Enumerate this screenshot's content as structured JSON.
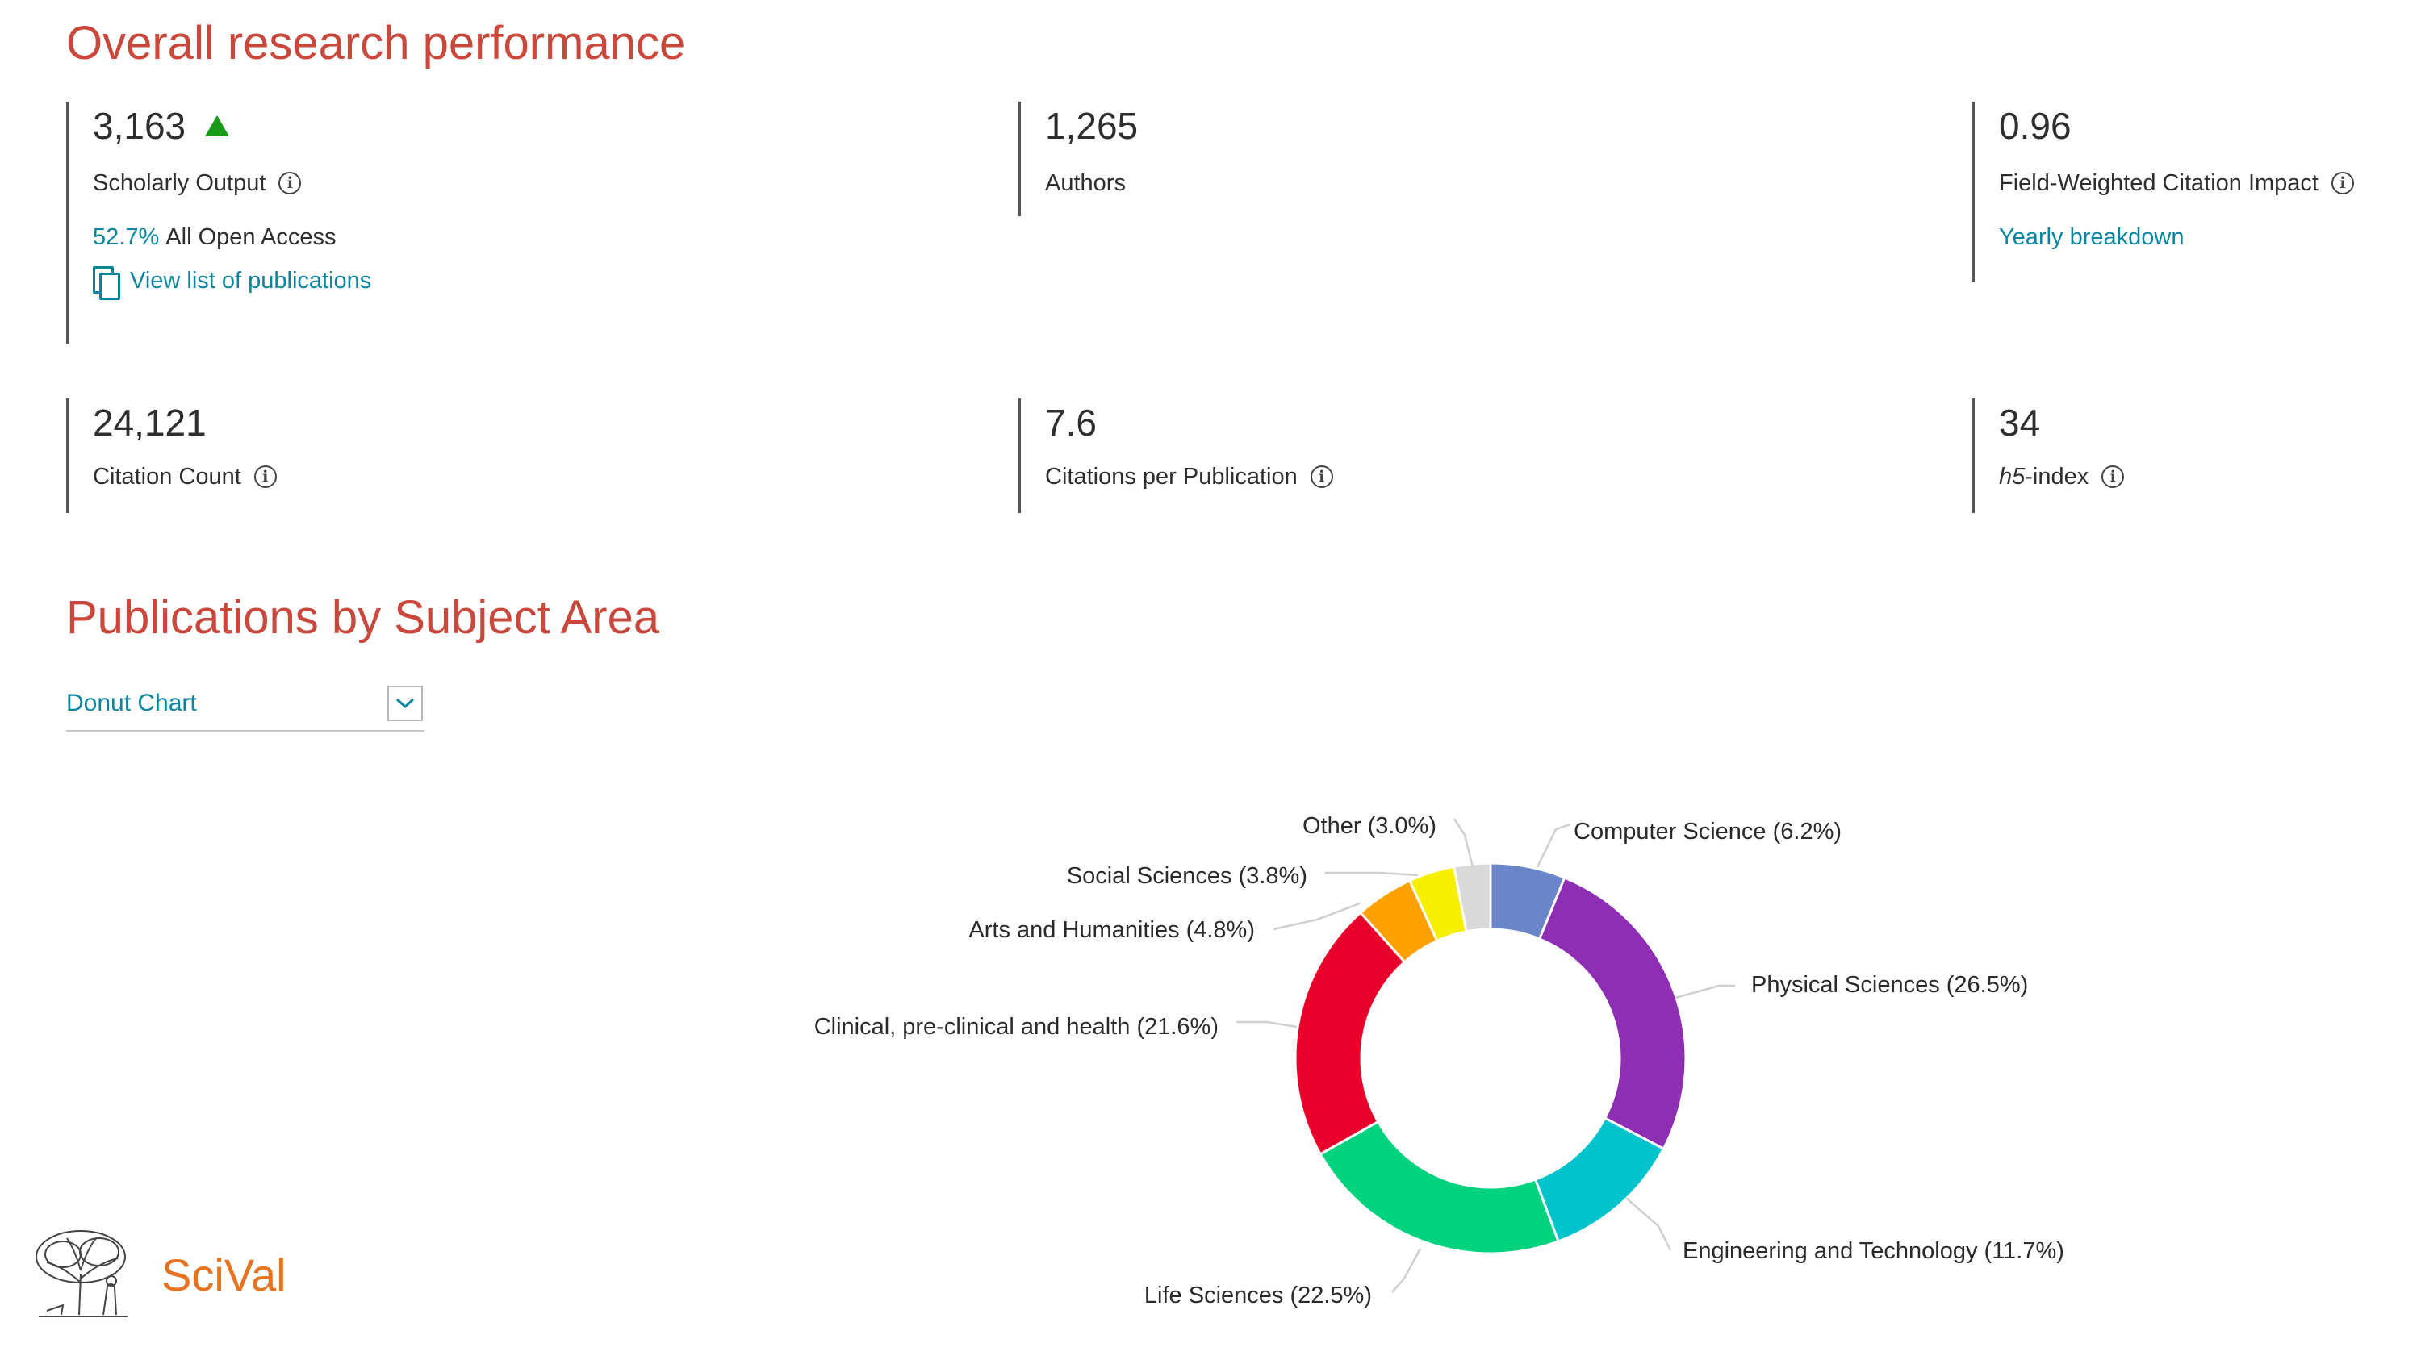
{
  "sections": {
    "performance_title": "Overall research performance",
    "subject_title": "Publications by Subject Area"
  },
  "metrics": {
    "scholarly_output": {
      "value": "3,163",
      "label": "Scholarly Output",
      "trend": "up",
      "open_access_pct": "52.7%",
      "open_access_label": "All Open Access",
      "view_link": "View list of publications"
    },
    "authors": {
      "value": "1,265",
      "label": "Authors"
    },
    "fwci": {
      "value": "0.96",
      "label": "Field-Weighted Citation Impact",
      "link": "Yearly breakdown"
    },
    "citation_count": {
      "value": "24,121",
      "label": "Citation Count"
    },
    "citations_per_pub": {
      "value": "7.6",
      "label": "Citations per Publication"
    },
    "h5_index": {
      "value": "34",
      "label_italic": "h5",
      "label_rest": "-index"
    }
  },
  "chart_selector": {
    "selected": "Donut Chart"
  },
  "chart_data": {
    "type": "pie",
    "variant": "donut",
    "slices": [
      {
        "name": "Computer Science",
        "value": 6.2,
        "label": "Computer Science (6.2%)",
        "color": "#6b86c8"
      },
      {
        "name": "Physical Sciences",
        "value": 26.5,
        "label": "Physical Sciences (26.5%)",
        "color": "#8e2fb3"
      },
      {
        "name": "Engineering and Technology",
        "value": 11.7,
        "label": "Engineering and Technology (11.7%)",
        "color": "#00c3cc"
      },
      {
        "name": "Life Sciences",
        "value": 22.5,
        "label": "Life Sciences (22.5%)",
        "color": "#00d27e"
      },
      {
        "name": "Clinical, pre-clinical and health",
        "value": 21.6,
        "label": "Clinical, pre-clinical and health (21.6%)",
        "color": "#e8002a"
      },
      {
        "name": "Arts and Humanities",
        "value": 4.8,
        "label": "Arts and Humanities (4.8%)",
        "color": "#ffa100"
      },
      {
        "name": "Social Sciences",
        "value": 3.8,
        "label": "Social Sciences (3.8%)",
        "color": "#f6f000"
      },
      {
        "name": "Other",
        "value": 3.0,
        "label": "Other (3.0%)",
        "color": "#d9d9d9"
      }
    ]
  },
  "logo": {
    "text": "SciVal",
    "icon": "elsevier-tree-icon"
  },
  "colors": {
    "title": "#c9473b",
    "accent": "#0a85a0",
    "trend_up": "#1a9a1a",
    "brand": "#e6731f"
  }
}
